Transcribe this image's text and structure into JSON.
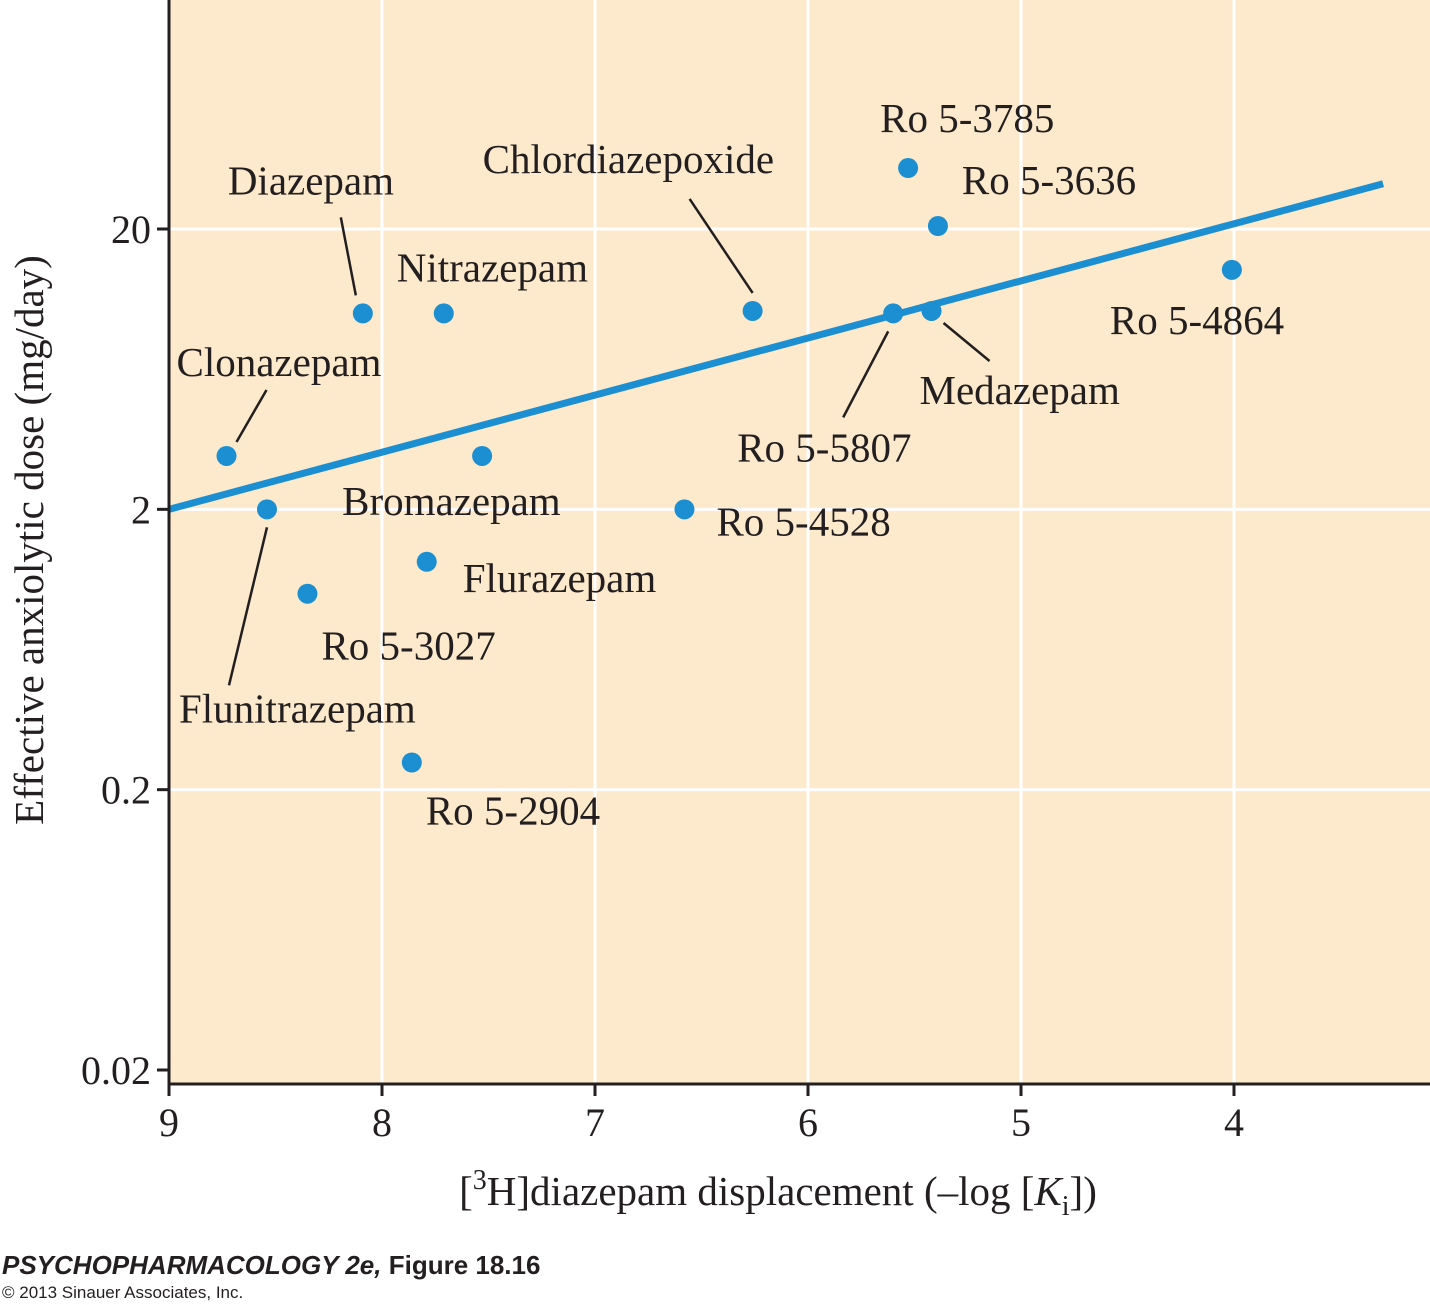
{
  "chart_data": {
    "type": "scatter",
    "xlabel": {
      "prefix": "[",
      "sup": "3",
      "mid": "H]diazepam displacement (–log [",
      "italic": "K",
      "sub": "i",
      "suffix": "])"
    },
    "ylabel": "Effective anxiolytic dose (mg/day)",
    "x_reversed": true,
    "xlim": [
      9,
      3.0
    ],
    "y_scale": "log",
    "ylim": [
      0.02,
      200
    ],
    "x_ticks": [
      9,
      8,
      7,
      6,
      5,
      4
    ],
    "x_tick_labels": [
      "9",
      "8",
      "7",
      "6",
      "5",
      "4"
    ],
    "y_ticks": [
      0.02,
      0.2,
      2,
      20
    ],
    "y_tick_labels": [
      "0.02",
      "0.2",
      "2",
      "20"
    ],
    "grid": true,
    "colors": {
      "background": "#fde9cc",
      "grid": "#ffffff",
      "points": "#1b8fd2",
      "line": "#1b8fd2",
      "axis": "#231f20"
    },
    "points": [
      {
        "name": "Ro 5-3785",
        "x": 5.53,
        "y": 33
      },
      {
        "name": "Ro 5-3636",
        "x": 5.39,
        "y": 20.5
      },
      {
        "name": "Ro 5-4864",
        "x": 4.01,
        "y": 14.3
      },
      {
        "name": "Chlordiazepoxide",
        "x": 6.26,
        "y": 10.2
      },
      {
        "name": "Diazepam",
        "x": 8.09,
        "y": 10.0
      },
      {
        "name": "Nitrazepam",
        "x": 7.71,
        "y": 10.0
      },
      {
        "name": "Ro 5-5807",
        "x": 5.6,
        "y": 10.0
      },
      {
        "name": "Medazepam",
        "x": 5.42,
        "y": 10.2
      },
      {
        "name": "Clonazepam",
        "x": 8.73,
        "y": 3.1
      },
      {
        "name": "Bromazepam",
        "x": 7.53,
        "y": 3.1
      },
      {
        "name": "Flunitrazepam",
        "x": 8.54,
        "y": 2.0
      },
      {
        "name": "Ro 5-4528",
        "x": 6.58,
        "y": 2.0
      },
      {
        "name": "Flurazepam",
        "x": 7.79,
        "y": 1.3
      },
      {
        "name": "Ro 5-3027",
        "x": 8.35,
        "y": 1.0
      },
      {
        "name": "Ro 5-2904",
        "x": 7.86,
        "y": 0.25
      }
    ],
    "regression_line": {
      "x": [
        9,
        3.3
      ],
      "y": [
        2.0,
        29
      ]
    }
  },
  "caption": {
    "book": "PSYCHOPHARMACOLOGY 2e,",
    "figure": "Figure 18.16",
    "copyright": "© 2013 Sinauer Associates, Inc."
  }
}
